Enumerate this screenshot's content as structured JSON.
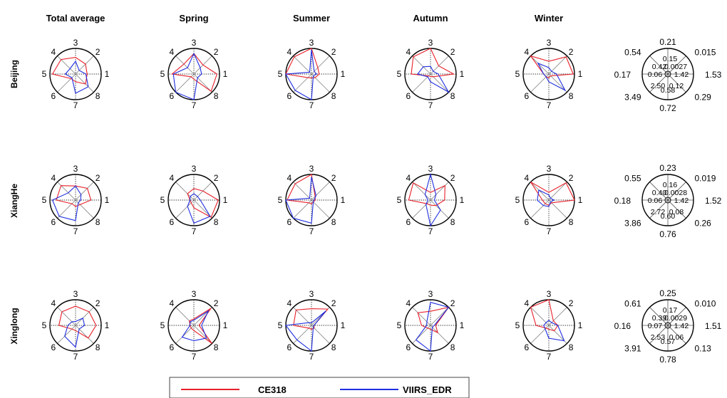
{
  "colors": {
    "ce318": "#e8202a",
    "viirs": "#1f2ee0"
  },
  "columns": [
    "Total average",
    "Spring",
    "Summer",
    "Autumn",
    "Winter"
  ],
  "rows": [
    "Beijing",
    "XiangHe",
    "Xinglong"
  ],
  "direction_labels": [
    "1",
    "2",
    "3",
    "4",
    "5",
    "6",
    "7",
    "8"
  ],
  "legend": {
    "ce318": "CE318",
    "viirs": "VIIRS_EDR"
  },
  "chart_data": {
    "type": "radar",
    "series_names": [
      "CE318",
      "VIIRS_EDR"
    ],
    "radial_range": [
      0,
      1
    ],
    "note_axes": [
      "1",
      "2",
      "3",
      "4",
      "5",
      "6",
      "7",
      "8"
    ],
    "panels": [
      {
        "row": "Beijing",
        "column": "Total average",
        "ce318": [
          0.45,
          0.55,
          0.65,
          0.8,
          0.9,
          0.25,
          0.3,
          0.55
        ],
        "viirs": [
          0.4,
          0.2,
          0.5,
          0.3,
          0.4,
          0.2,
          0.75,
          0.7
        ]
      },
      {
        "row": "Beijing",
        "column": "Spring",
        "ce318": [
          0.9,
          0.5,
          0.8,
          0.55,
          0.85,
          0.15,
          0.2,
          0.95
        ],
        "viirs": [
          0.3,
          0.35,
          0.8,
          0.35,
          0.8,
          1.0,
          1.0,
          0.2
        ]
      },
      {
        "row": "Beijing",
        "column": "Summer",
        "ce318": [
          0.3,
          0.35,
          1.0,
          0.95,
          1.0,
          0.2,
          0.15,
          0.2
        ],
        "viirs": [
          0.2,
          0.15,
          0.95,
          0.1,
          1.0,
          0.9,
          1.0,
          0.1
        ]
      },
      {
        "row": "Beijing",
        "column": "Autumn",
        "ce318": [
          0.9,
          0.45,
          1.0,
          0.95,
          0.75,
          0.1,
          0.1,
          0.15
        ],
        "viirs": [
          0.3,
          0.15,
          0.3,
          0.4,
          0.5,
          0.15,
          0.3,
          1.0
        ]
      },
      {
        "row": "Beijing",
        "column": "Winter",
        "ce318": [
          0.95,
          0.95,
          0.5,
          1.0,
          0.2,
          0.15,
          0.15,
          0.1
        ],
        "viirs": [
          0.3,
          0.15,
          0.25,
          0.6,
          0.2,
          0.15,
          0.3,
          0.9
        ]
      },
      {
        "row": "XiangHe",
        "column": "Total average",
        "ce318": [
          0.6,
          0.65,
          0.55,
          0.8,
          0.75,
          0.2,
          0.25,
          0.25
        ],
        "viirs": [
          0.2,
          0.3,
          0.55,
          0.4,
          0.9,
          0.9,
          0.8,
          0.15
        ]
      },
      {
        "row": "XiangHe",
        "column": "Spring",
        "ce318": [
          0.95,
          0.5,
          0.45,
          0.35,
          0.15,
          0.15,
          0.3,
          0.95
        ],
        "viirs": [
          0.25,
          0.2,
          0.25,
          0.2,
          0.15,
          0.35,
          0.9,
          0.9
        ]
      },
      {
        "row": "XiangHe",
        "column": "Summer",
        "ce318": [
          0.15,
          0.2,
          1.0,
          0.9,
          0.95,
          0.15,
          0.15,
          0.1
        ],
        "viirs": [
          0.1,
          0.25,
          0.9,
          0.1,
          1.0,
          1.0,
          0.9,
          0.1
        ]
      },
      {
        "row": "XiangHe",
        "column": "Autumn",
        "ce318": [
          0.55,
          0.8,
          0.3,
          0.95,
          0.85,
          0.2,
          0.2,
          0.3
        ],
        "viirs": [
          0.15,
          0.3,
          1.0,
          0.3,
          0.1,
          0.25,
          1.0,
          0.55
        ]
      },
      {
        "row": "XiangHe",
        "column": "Winter",
        "ce318": [
          1.0,
          0.95,
          0.3,
          1.0,
          0.25,
          0.2,
          0.2,
          0.15
        ],
        "viirs": [
          0.2,
          0.1,
          0.2,
          0.55,
          0.45,
          0.3,
          0.25,
          0.1
        ]
      },
      {
        "row": "Xinglong",
        "column": "Total average",
        "ce318": [
          0.8,
          0.75,
          0.75,
          0.75,
          0.65,
          0.2,
          0.2,
          0.7
        ],
        "viirs": [
          0.35,
          0.4,
          0.15,
          0.2,
          0.3,
          0.6,
          0.85,
          0.2
        ]
      },
      {
        "row": "Xinglong",
        "column": "Spring",
        "ce318": [
          0.2,
          0.95,
          0.25,
          0.25,
          0.15,
          0.15,
          0.2,
          1.0
        ],
        "viirs": [
          0.3,
          0.8,
          0.2,
          0.2,
          0.15,
          0.65,
          0.6,
          0.7
        ]
      },
      {
        "row": "Xinglong",
        "column": "Summer",
        "ce318": [
          0.1,
          0.9,
          0.65,
          0.85,
          0.7,
          0.15,
          0.15,
          0.15
        ],
        "viirs": [
          0.1,
          0.8,
          0.1,
          0.15,
          1.0,
          0.8,
          1.0,
          0.1
        ]
      },
      {
        "row": "Xinglong",
        "column": "Autumn",
        "ce318": [
          0.2,
          1.0,
          0.55,
          0.7,
          0.35,
          0.15,
          0.15,
          0.4
        ],
        "viirs": [
          0.15,
          1.0,
          0.9,
          0.2,
          0.15,
          0.8,
          1.0,
          0.1
        ]
      },
      {
        "row": "Xinglong",
        "column": "Winter",
        "ce318": [
          0.35,
          0.25,
          1.0,
          1.0,
          0.5,
          0.15,
          0.15,
          0.3
        ],
        "viirs": [
          0.35,
          0.15,
          0.2,
          0.15,
          0.2,
          0.2,
          0.5,
          0.85
        ]
      }
    ],
    "reference_scales": [
      {
        "row": "Beijing",
        "outer": [
          "1.53",
          "0.015",
          "0.21",
          "0.54",
          "0.17",
          "3.49",
          "0.72",
          "0.29"
        ],
        "inner": [
          "1.42",
          "0.0027",
          "0.15",
          "0.42",
          "0.06",
          "2.50",
          "0.58",
          "0.12"
        ]
      },
      {
        "row": "XiangHe",
        "outer": [
          "1.52",
          "0.019",
          "0.23",
          "0.55",
          "0.18",
          "3.86",
          "0.76",
          "0.26"
        ],
        "inner": [
          "1.42",
          "0.0028",
          "0.16",
          "0.40",
          "0.06",
          "2.72",
          "0.60",
          "0.08"
        ]
      },
      {
        "row": "Xinglong",
        "outer": [
          "1.51",
          "0.010",
          "0.25",
          "0.61",
          "0.16",
          "3.91",
          "0.78",
          "0.13"
        ],
        "inner": [
          "1.42",
          "0.0029",
          "0.17",
          "0.39",
          "0.07",
          "2.53",
          "0.57",
          "0.06"
        ]
      }
    ]
  }
}
